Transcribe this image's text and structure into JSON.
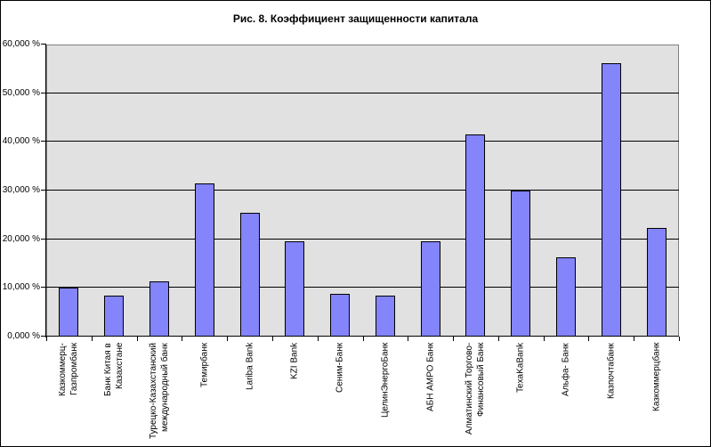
{
  "chart_data": {
    "type": "bar",
    "title": "Рис. 8. Коэффициент защищенности капитала",
    "categories": [
      "Казкоммерц-Газпромбанк",
      "Банк Китая в Казахстане",
      "Турецко-Казахстанский\nмеждународный банк",
      "Темирбанк",
      "Lariba Bank",
      "KZI Bank",
      "Сеним-Банк",
      "ЦелинЭнергоБанк",
      "АБН АМРО Банк",
      "Алматинский Торгово-\nФинансовый Банк",
      "TexaKaBank",
      "Альфа- Банк",
      "Казпочтабанк",
      "Казкоммерцбанк"
    ],
    "values": [
      10.0,
      8.5,
      11.3,
      31.5,
      25.5,
      19.5,
      8.7,
      8.5,
      19.6,
      41.5,
      30.0,
      16.2,
      56.1,
      22.3
    ],
    "unit": "%",
    "xlabel": "",
    "ylabel": "",
    "ylim": [
      0,
      60
    ],
    "ytick_step": 10,
    "ytick_labels": [
      "0,000 %",
      "10,000 %",
      "20,000 %",
      "30,000 %",
      "40,000 %",
      "50,000 %",
      "60,000 %"
    ],
    "grid": true,
    "legend": "none",
    "colors": {
      "bar_fill": "#8484FB",
      "bar_border": "#000000",
      "plot_bg": "#E1E1E1",
      "plot_border": "#808080",
      "gridline": "#000000",
      "axis": "#000000",
      "text": "#000000",
      "frame_bg": "#FFFFFF",
      "frame_border": "#000000"
    }
  }
}
